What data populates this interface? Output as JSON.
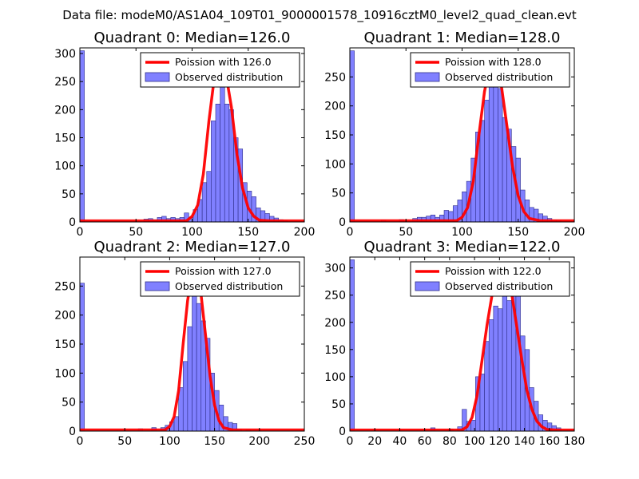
{
  "figure": {
    "suptitle": "Data file: modeM0/AS1A04_109T01_9000001578_10916cztM0_level2_quad_clean.evt"
  },
  "colors": {
    "bar_fill": "#8080ff",
    "bar_edge": "#2e2e8a",
    "fit_line": "#ff0000",
    "axes": "#000000"
  },
  "chart_data": [
    {
      "type": "bar",
      "title": "Quadrant 0: Median=126.0",
      "median": 126.0,
      "xlim": [
        0,
        200
      ],
      "ylim": [
        0,
        310
      ],
      "xticks": [
        0,
        50,
        100,
        150,
        200
      ],
      "xtick_labels": [
        "0",
        "50",
        "100",
        "150",
        "200"
      ],
      "yticks": [
        0,
        50,
        100,
        150,
        200,
        250,
        300
      ],
      "ytick_labels": [
        "0",
        "50",
        "100",
        "150",
        "200",
        "250",
        "300"
      ],
      "legend": {
        "line_label": "Poission with 126.0",
        "bar_label": "Observed distribution",
        "loc": "upper right"
      },
      "bins": [
        [
          0,
          4,
          305
        ],
        [
          57,
          61,
          5
        ],
        [
          61,
          65,
          6
        ],
        [
          65,
          69,
          4
        ],
        [
          69,
          73,
          8
        ],
        [
          73,
          77,
          10
        ],
        [
          77,
          81,
          6
        ],
        [
          81,
          85,
          8
        ],
        [
          85,
          89,
          6
        ],
        [
          89,
          93,
          8
        ],
        [
          93,
          97,
          16
        ],
        [
          97,
          101,
          8
        ],
        [
          101,
          105,
          22
        ],
        [
          105,
          109,
          40
        ],
        [
          109,
          113,
          70
        ],
        [
          113,
          117,
          90
        ],
        [
          117,
          121,
          180
        ],
        [
          121,
          125,
          210
        ],
        [
          125,
          129,
          300
        ],
        [
          129,
          133,
          210
        ],
        [
          133,
          137,
          200
        ],
        [
          137,
          141,
          150
        ],
        [
          141,
          145,
          130
        ],
        [
          145,
          149,
          70
        ],
        [
          149,
          153,
          55
        ],
        [
          153,
          157,
          45
        ],
        [
          157,
          161,
          25
        ],
        [
          161,
          165,
          20
        ],
        [
          165,
          169,
          15
        ],
        [
          169,
          173,
          10
        ],
        [
          173,
          177,
          7
        ],
        [
          177,
          181,
          4
        ],
        [
          181,
          185,
          2
        ]
      ],
      "poisson_line": {
        "x": [
          0,
          95,
          100,
          105,
          110,
          115,
          120,
          125,
          130,
          135,
          140,
          145,
          150,
          155,
          160,
          170,
          200
        ],
        "y": [
          2,
          2,
          10,
          30,
          85,
          180,
          260,
          295,
          265,
          205,
          120,
          60,
          25,
          10,
          3,
          2,
          2
        ]
      }
    },
    {
      "type": "bar",
      "title": "Quadrant 1: Median=128.0",
      "median": 128.0,
      "xlim": [
        0,
        200
      ],
      "ylim": [
        0,
        300
      ],
      "xticks": [
        0,
        50,
        100,
        150,
        200
      ],
      "xtick_labels": [
        "0",
        "50",
        "100",
        "150",
        "200"
      ],
      "yticks": [
        0,
        50,
        100,
        150,
        200,
        250
      ],
      "ytick_labels": [
        "0",
        "50",
        "100",
        "150",
        "200",
        "250"
      ],
      "legend": {
        "line_label": "Poission with 128.0",
        "bar_label": "Observed distribution",
        "loc": "upper right"
      },
      "bins": [
        [
          0,
          4,
          295
        ],
        [
          28,
          32,
          3
        ],
        [
          44,
          48,
          4
        ],
        [
          56,
          60,
          6
        ],
        [
          60,
          64,
          8
        ],
        [
          64,
          68,
          8
        ],
        [
          68,
          72,
          10
        ],
        [
          72,
          76,
          12
        ],
        [
          76,
          80,
          8
        ],
        [
          80,
          84,
          12
        ],
        [
          84,
          88,
          20
        ],
        [
          88,
          92,
          18
        ],
        [
          92,
          96,
          28
        ],
        [
          96,
          100,
          38
        ],
        [
          100,
          104,
          52
        ],
        [
          104,
          108,
          70
        ],
        [
          108,
          112,
          110
        ],
        [
          112,
          116,
          155
        ],
        [
          116,
          120,
          175
        ],
        [
          120,
          124,
          210
        ],
        [
          124,
          128,
          260
        ],
        [
          128,
          132,
          280
        ],
        [
          132,
          136,
          230
        ],
        [
          136,
          140,
          180
        ],
        [
          140,
          144,
          160
        ],
        [
          144,
          148,
          130
        ],
        [
          148,
          152,
          110
        ],
        [
          152,
          156,
          55
        ],
        [
          156,
          160,
          38
        ],
        [
          160,
          164,
          25
        ],
        [
          164,
          168,
          22
        ],
        [
          168,
          172,
          14
        ],
        [
          172,
          176,
          10
        ],
        [
          176,
          180,
          6
        ],
        [
          180,
          184,
          3
        ],
        [
          184,
          188,
          2
        ]
      ],
      "poisson_line": {
        "x": [
          0,
          95,
          100,
          105,
          110,
          115,
          120,
          125,
          128,
          130,
          135,
          140,
          145,
          150,
          155,
          160,
          170,
          200
        ],
        "y": [
          2,
          2,
          8,
          25,
          70,
          150,
          225,
          272,
          280,
          275,
          235,
          165,
          95,
          45,
          18,
          6,
          2,
          2
        ]
      }
    },
    {
      "type": "bar",
      "title": "Quadrant 2: Median=127.0",
      "median": 127.0,
      "xlim": [
        0,
        250
      ],
      "ylim": [
        0,
        300
      ],
      "xticks": [
        0,
        50,
        100,
        150,
        200,
        250
      ],
      "xtick_labels": [
        "0",
        "50",
        "100",
        "150",
        "200",
        "250"
      ],
      "yticks": [
        0,
        50,
        100,
        150,
        200,
        250
      ],
      "ytick_labels": [
        "0",
        "50",
        "100",
        "150",
        "200",
        "250"
      ],
      "legend": {
        "line_label": "Poission with 127.0",
        "bar_label": "Observed distribution",
        "loc": "upper right"
      },
      "bins": [
        [
          0,
          5,
          255
        ],
        [
          65,
          70,
          4
        ],
        [
          80,
          85,
          6
        ],
        [
          90,
          95,
          6
        ],
        [
          95,
          100,
          10
        ],
        [
          100,
          105,
          16
        ],
        [
          105,
          110,
          25
        ],
        [
          110,
          115,
          75
        ],
        [
          115,
          120,
          120
        ],
        [
          120,
          125,
          180
        ],
        [
          125,
          130,
          270
        ],
        [
          130,
          135,
          220
        ],
        [
          135,
          140,
          190
        ],
        [
          140,
          145,
          160
        ],
        [
          145,
          150,
          100
        ],
        [
          150,
          155,
          70
        ],
        [
          155,
          160,
          45
        ],
        [
          160,
          165,
          25
        ],
        [
          165,
          170,
          15
        ],
        [
          170,
          175,
          13
        ],
        [
          175,
          180,
          3
        ],
        [
          185,
          190,
          2
        ]
      ],
      "poisson_line": {
        "x": [
          0,
          95,
          100,
          105,
          110,
          115,
          120,
          125,
          127,
          130,
          135,
          140,
          145,
          150,
          155,
          160,
          170,
          250
        ],
        "y": [
          2,
          2,
          8,
          25,
          70,
          150,
          225,
          272,
          280,
          275,
          235,
          165,
          95,
          45,
          18,
          6,
          2,
          2
        ]
      }
    },
    {
      "type": "bar",
      "title": "Quadrant 3: Median=122.0",
      "median": 122.0,
      "xlim": [
        0,
        180
      ],
      "ylim": [
        0,
        320
      ],
      "xticks": [
        0,
        20,
        40,
        60,
        80,
        100,
        120,
        140,
        160,
        180
      ],
      "xtick_labels": [
        "0",
        "20",
        "40",
        "60",
        "80",
        "100",
        "120",
        "140",
        "160",
        "180"
      ],
      "yticks": [
        0,
        50,
        100,
        150,
        200,
        250,
        300
      ],
      "ytick_labels": [
        "0",
        "50",
        "100",
        "150",
        "200",
        "250",
        "300"
      ],
      "legend": {
        "line_label": "Poission with 122.0",
        "bar_label": "Observed distribution",
        "loc": "upper right"
      },
      "bins": [
        [
          0,
          3.6,
          315
        ],
        [
          64.8,
          68.4,
          6
        ],
        [
          79.2,
          82.8,
          4
        ],
        [
          86.4,
          90,
          8
        ],
        [
          90,
          93.6,
          40
        ],
        [
          93.6,
          97.2,
          18
        ],
        [
          97.2,
          100.8,
          20
        ],
        [
          100.8,
          104.4,
          100
        ],
        [
          104.4,
          108,
          105
        ],
        [
          108,
          111.6,
          165
        ],
        [
          111.6,
          115.2,
          205
        ],
        [
          115.2,
          118.8,
          230
        ],
        [
          118.8,
          122.4,
          225
        ],
        [
          122.4,
          126,
          305
        ],
        [
          126,
          129.6,
          240
        ],
        [
          129.6,
          133.2,
          260
        ],
        [
          133.2,
          136.8,
          250
        ],
        [
          136.8,
          140.4,
          175
        ],
        [
          140.4,
          144,
          150
        ],
        [
          144,
          147.6,
          80
        ],
        [
          147.6,
          151.2,
          55
        ],
        [
          151.2,
          154.8,
          30
        ],
        [
          154.8,
          158.4,
          20
        ],
        [
          158.4,
          162,
          15
        ],
        [
          162,
          165.6,
          10
        ],
        [
          165.6,
          169.2,
          6
        ]
      ],
      "poisson_line": {
        "x": [
          0,
          90,
          94,
          98,
          102,
          106,
          110,
          114,
          118,
          122,
          126,
          130,
          134,
          138,
          142,
          146,
          150,
          154,
          158,
          166,
          180
        ],
        "y": [
          2,
          2,
          8,
          25,
          65,
          130,
          195,
          250,
          290,
          300,
          285,
          250,
          190,
          130,
          75,
          40,
          18,
          8,
          3,
          2,
          2
        ]
      }
    }
  ]
}
